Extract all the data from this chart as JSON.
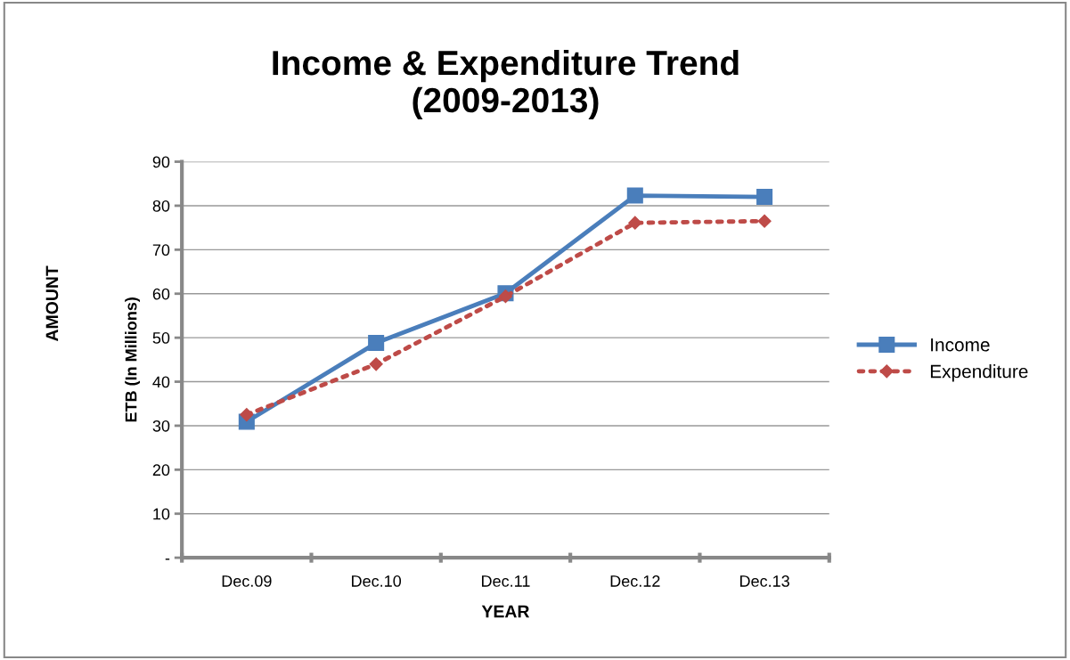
{
  "chart_data": {
    "type": "line",
    "title": "Income & Expenditure Trend\n(2009-2013)",
    "xlabel": "YEAR",
    "ylabel": "ETB (In Millions)",
    "annotations": [
      "AMOUNT"
    ],
    "categories": [
      "Dec.09",
      "Dec.10",
      "Dec.11",
      "Dec.12",
      "Dec.13"
    ],
    "series": [
      {
        "name": "Income",
        "color": "#4a7ebb",
        "values": [
          30.9,
          48.8,
          60.1,
          82.3,
          82.0
        ],
        "marker": "square",
        "line_style": "solid"
      },
      {
        "name": "Expenditure",
        "color": "#be4b48",
        "values": [
          32.5,
          44.0,
          59.4,
          76.1,
          76.5
        ],
        "marker": "diamond",
        "line_style": "dotted"
      }
    ],
    "ylim": [
      0,
      90
    ],
    "yticks": [
      {
        "value": 0,
        "label": "-"
      },
      10,
      20,
      30,
      40,
      50,
      60,
      70,
      80,
      90
    ],
    "grid": "y",
    "legend": "right"
  }
}
